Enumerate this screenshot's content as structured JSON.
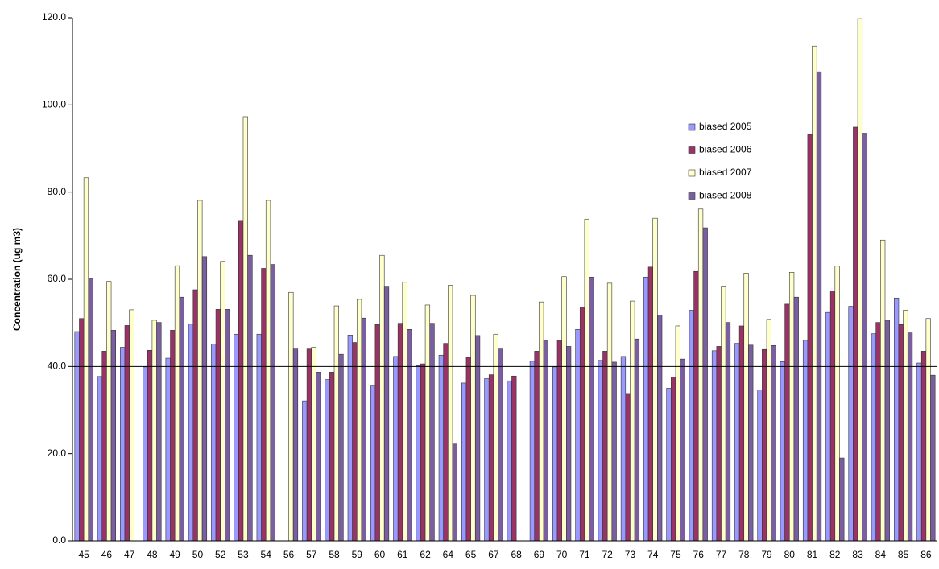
{
  "chart_data": {
    "type": "bar",
    "ylabel": "Concentration  (ug m3)",
    "categories": [
      "45",
      "46",
      "47",
      "48",
      "49",
      "50",
      "52",
      "53",
      "54",
      "56",
      "57",
      "58",
      "59",
      "60",
      "61",
      "62",
      "64",
      "65",
      "67",
      "68",
      "69",
      "70",
      "71",
      "72",
      "73",
      "74",
      "75",
      "76",
      "77",
      "78",
      "79",
      "80",
      "81",
      "82",
      "83",
      "84",
      "85",
      "86"
    ],
    "series": [
      {
        "name": "biased 2005",
        "color": "#9999ff",
        "values": [
          48,
          37.7,
          44.4,
          39.9,
          41.9,
          49.7,
          45.1,
          47.4,
          47.4,
          null,
          32.1,
          37,
          47.2,
          35.7,
          42.3,
          40.2,
          42.6,
          36.2,
          37.2,
          36.7,
          41.2,
          39.9,
          48.5,
          41.4,
          42.3,
          60.5,
          35,
          52.9,
          43.6,
          45.3,
          34.6,
          41.1,
          46,
          52.4,
          53.8,
          47.5,
          55.7,
          40.8
        ]
      },
      {
        "name": "biased 2006",
        "color": "#993366",
        "values": [
          51,
          43.5,
          49.4,
          43.7,
          48.3,
          57.6,
          53.1,
          73.5,
          62.5,
          null,
          44,
          38.7,
          45.5,
          49.6,
          49.9,
          40.6,
          45.3,
          42.1,
          38.1,
          37.8,
          43.5,
          46,
          53.6,
          43.5,
          33.8,
          62.8,
          37.6,
          61.8,
          44.6,
          49.3,
          43.9,
          54.3,
          93.2,
          57.3,
          94.9,
          50.1,
          49.6,
          43.5
        ]
      },
      {
        "name": "biased 2007",
        "color": "#ffffcc",
        "values": [
          83.3,
          59.5,
          53,
          50.6,
          63.1,
          78.1,
          64.1,
          97.3,
          78.1,
          57,
          44.4,
          53.9,
          55.4,
          65.5,
          59.3,
          54.1,
          58.6,
          56.3,
          47.4,
          null,
          54.8,
          60.6,
          73.8,
          59.1,
          55,
          74,
          49.3,
          76.1,
          58.4,
          61.4,
          50.8,
          61.6,
          113.5,
          63,
          119.8,
          69,
          52.9,
          51
        ]
      },
      {
        "name": "biased 2008",
        "color": "#7a5fa0",
        "values": [
          60.2,
          48.3,
          null,
          50.1,
          55.9,
          65.2,
          53.1,
          65.5,
          63.4,
          44,
          38.7,
          42.8,
          51.1,
          58.4,
          48.5,
          49.9,
          22.2,
          47.1,
          44,
          null,
          46,
          44.6,
          60.5,
          41,
          46.3,
          51.8,
          41.7,
          71.8,
          50.1,
          44.9,
          44.8,
          55.9,
          107.6,
          19,
          93.5,
          50.6,
          47.7,
          38
        ]
      }
    ],
    "ylim": [
      0,
      120
    ],
    "yticks": [
      {
        "value": 0,
        "label": "0.0"
      },
      {
        "value": 20,
        "label": "20.0"
      },
      {
        "value": 40,
        "label": "40.0"
      },
      {
        "value": 60,
        "label": "60.0"
      },
      {
        "value": 80,
        "label": "80.0"
      },
      {
        "value": 100,
        "label": "100.0"
      },
      {
        "value": 120,
        "label": "120.0"
      }
    ],
    "reference_line": 40,
    "legend": "upper right"
  }
}
